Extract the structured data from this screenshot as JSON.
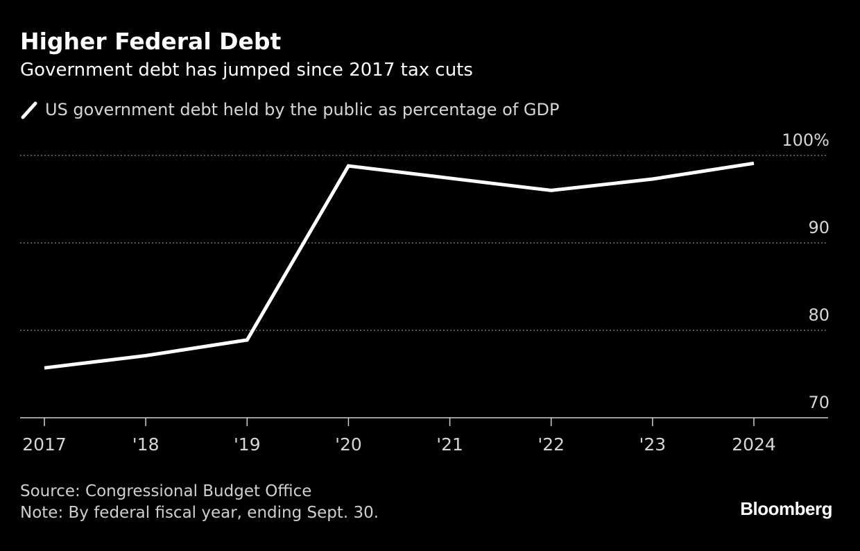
{
  "header": {
    "title": "Higher Federal Debt",
    "subtitle": "Government debt has jumped since 2017 tax cuts"
  },
  "legend": {
    "label": "US government debt held by the public as percentage of GDP",
    "swatch_icon": "diagonal-line-icon"
  },
  "footer": {
    "source": "Source: Congressional Budget Office",
    "note": "Note: By federal fiscal year, ending Sept. 30."
  },
  "brand": "Bloomberg",
  "colors": {
    "background": "#000000",
    "line": "#ffffff",
    "grid": "#8a8a8a",
    "tick_text": "#d6d6d6"
  },
  "chart_data": {
    "type": "line",
    "title": "Higher Federal Debt",
    "subtitle": "Government debt has jumped since 2017 tax cuts",
    "x": [
      2017,
      2018,
      2019,
      2020,
      2021,
      2022,
      2023,
      2024
    ],
    "x_tick_labels": [
      "2017",
      "'18",
      "'19",
      "'20",
      "'21",
      "'22",
      "'23",
      "2024"
    ],
    "series": [
      {
        "name": "US government debt held by the public as percentage of GDP",
        "values": [
          75.7,
          77.1,
          78.9,
          98.8,
          97.4,
          96.0,
          97.3,
          99.1
        ]
      }
    ],
    "ylim": [
      70,
      100
    ],
    "y_ticks": [
      70,
      80,
      90,
      100
    ],
    "y_tick_labels": [
      "70",
      "80",
      "90",
      "100%"
    ],
    "xlabel": "",
    "ylabel": "",
    "grid": "horizontal-dotted",
    "y_axis_position": "right",
    "legend_position": "top-left"
  }
}
